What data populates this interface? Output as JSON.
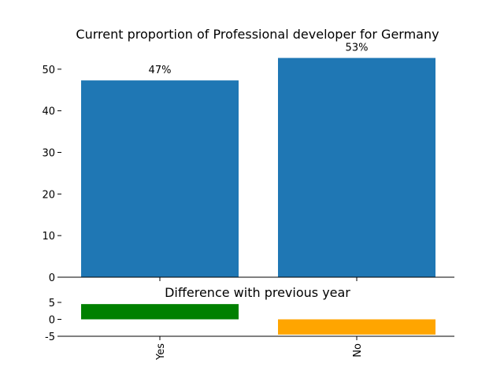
{
  "chart_data": [
    {
      "type": "bar",
      "title": "Current proportion of Professional developer for Germany",
      "categories": [
        "Yes",
        "No"
      ],
      "values": [
        47.3,
        52.7
      ],
      "data_labels": [
        "47%",
        "53%"
      ],
      "ylim": [
        0,
        53
      ],
      "yticks": [
        0,
        10,
        20,
        30,
        40,
        50
      ],
      "bar_colors": [
        "#1f77b4",
        "#1f77b4"
      ],
      "grid": false
    },
    {
      "type": "bar",
      "title": "Difference with previous year",
      "categories": [
        "Yes",
        "No"
      ],
      "values": [
        4.5,
        -4.5
      ],
      "ylim": [
        -5,
        5
      ],
      "yticks": [
        -5,
        0,
        5
      ],
      "bar_colors": [
        "#008000",
        "#ffa500"
      ],
      "grid": false
    }
  ]
}
